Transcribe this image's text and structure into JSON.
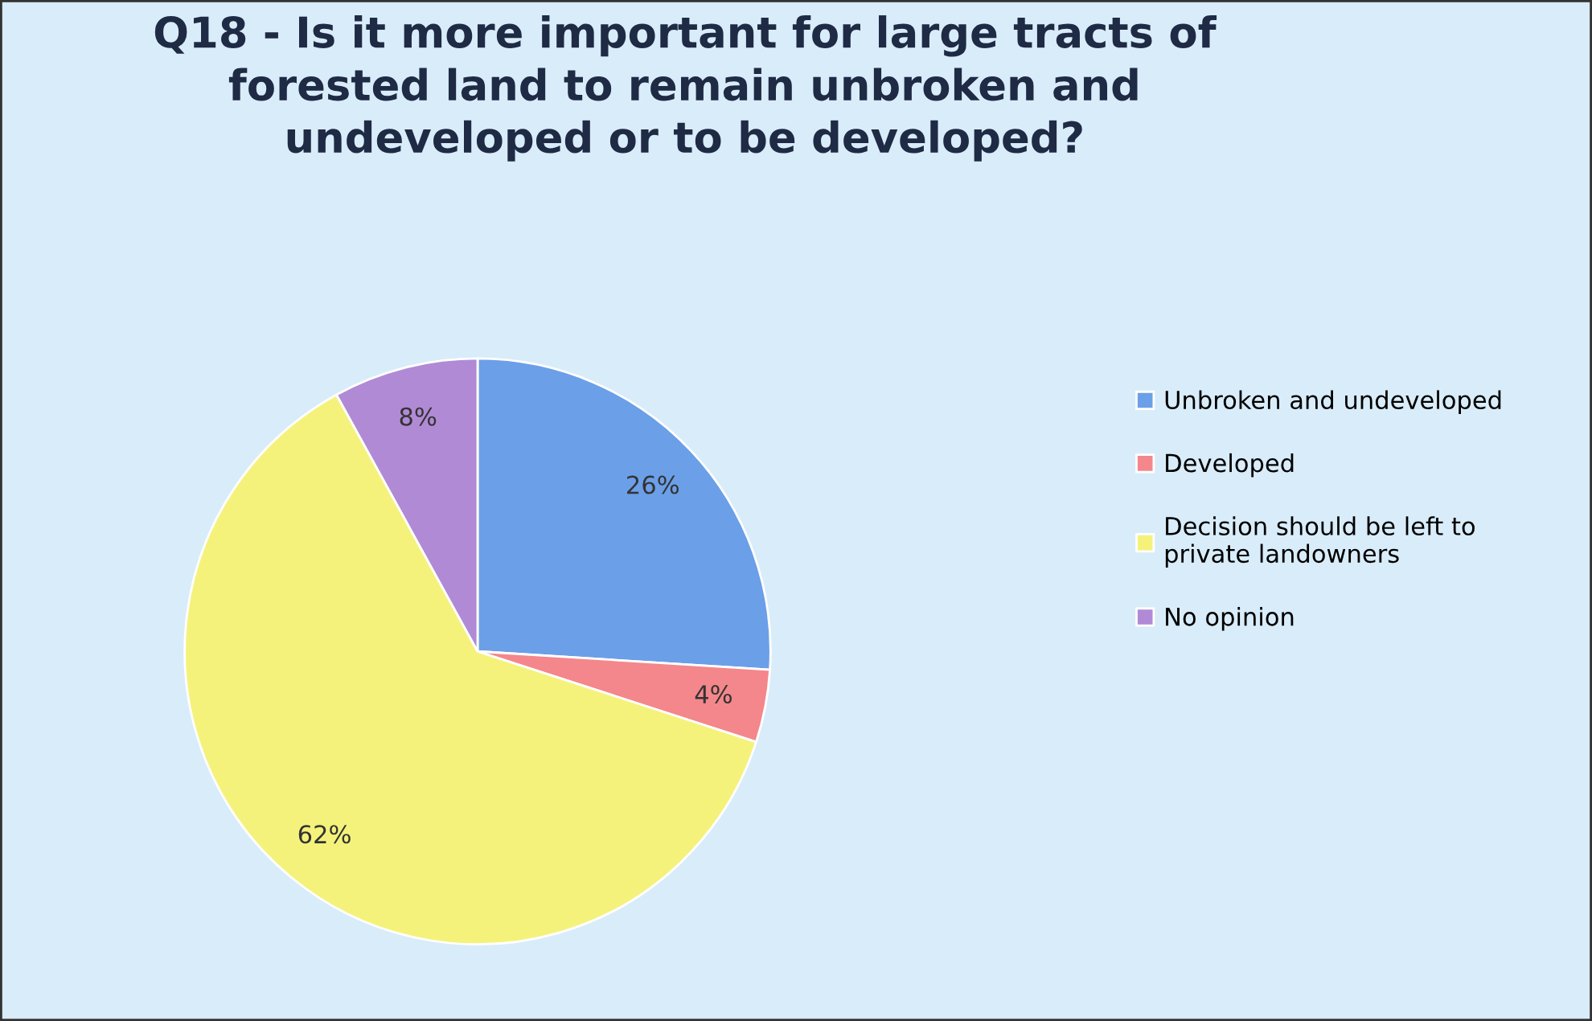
{
  "chart_data": {
    "type": "pie",
    "title": "Q18 - Is it more important for large tracts of\nforested land to remain unbroken and\nundeveloped or to be developed?",
    "categories": [
      "Unbroken and undeveloped",
      "Developed",
      "Decision should be left to\nprivate landowners",
      "No opinion"
    ],
    "values": [
      26,
      4,
      62,
      8
    ],
    "colors": [
      "#6b9fe8",
      "#f4878b",
      "#f5f27c",
      "#b18ad6"
    ],
    "value_labels": [
      "26%",
      "4%",
      "62%",
      "8%"
    ],
    "legend": "right"
  }
}
